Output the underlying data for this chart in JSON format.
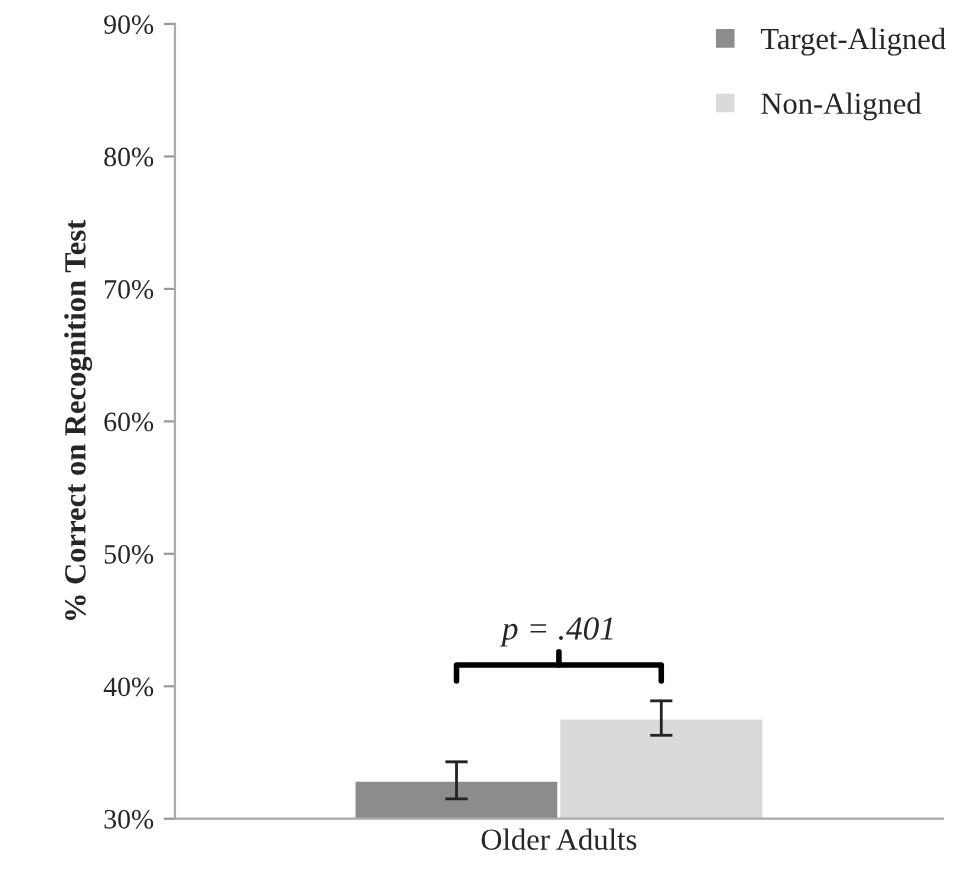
{
  "chart_data": {
    "type": "bar",
    "ylabel": "% Correct on Recognition Test",
    "categories": [
      "Older Adults"
    ],
    "series": [
      {
        "name": "Target-Aligned",
        "color": "#8c8c8c",
        "values": [
          32.9
        ],
        "errors": [
          1.4
        ]
      },
      {
        "name": "Non-Aligned",
        "color": "#dadada",
        "values": [
          37.6
        ],
        "errors": [
          1.3
        ]
      }
    ],
    "ylim": [
      30,
      90
    ],
    "yticks": [
      {
        "value": 30,
        "label": "30%"
      },
      {
        "value": 40,
        "label": "40%"
      },
      {
        "value": 50,
        "label": "50%"
      },
      {
        "value": 60,
        "label": "60%"
      },
      {
        "value": 70,
        "label": "70%"
      },
      {
        "value": 80,
        "label": "80%"
      },
      {
        "value": 90,
        "label": "90%"
      }
    ],
    "annotations": [
      "p = .401"
    ],
    "legend": "top right",
    "grid": false
  }
}
